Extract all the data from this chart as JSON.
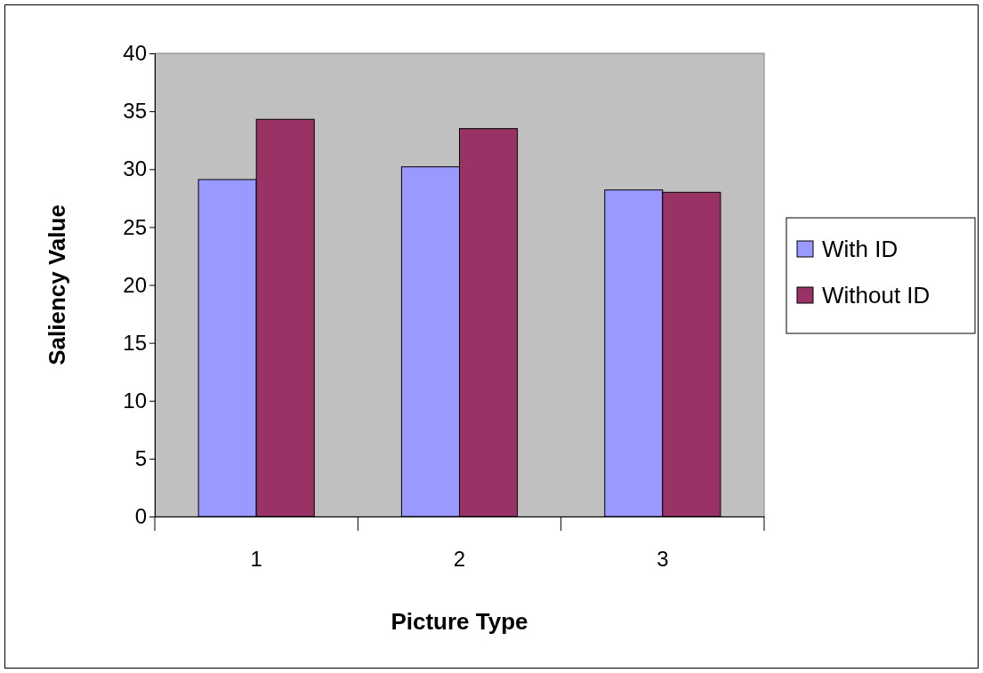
{
  "chart_data": {
    "type": "bar",
    "xlabel": "Picture Type",
    "ylabel": "Saliency Value",
    "categories": [
      "1",
      "2",
      "3"
    ],
    "series": [
      {
        "name": "With ID",
        "color": "#9999ff",
        "values": [
          29.1,
          30.2,
          28.2
        ]
      },
      {
        "name": "Without ID",
        "color": "#993366",
        "values": [
          34.3,
          33.5,
          28.0
        ]
      }
    ],
    "ylim": [
      0,
      40
    ],
    "yticks": [
      0,
      5,
      10,
      15,
      20,
      25,
      30,
      35,
      40
    ],
    "grid": false,
    "legend": "right"
  }
}
